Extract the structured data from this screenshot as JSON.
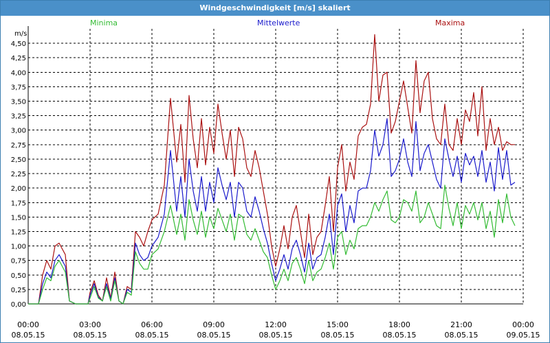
{
  "window": {
    "title": "Windgeschwindigkeit [m/s] skaliert"
  },
  "chart_data": {
    "type": "line",
    "title": "Windgeschwindigkeit [m/s] skaliert",
    "ylabel": "m/s",
    "xlabel": "",
    "ylim": [
      0,
      4.75
    ],
    "xlim": [
      0,
      24
    ],
    "grid": true,
    "legend": "top",
    "yticks": [
      "0,00",
      "0,25",
      "0,50",
      "0,75",
      "1,00",
      "1,25",
      "1,50",
      "1,75",
      "2,00",
      "2,25",
      "2,50",
      "2,75",
      "3,00",
      "3,25",
      "3,50",
      "3,75",
      "4,00",
      "4,25",
      "4,50"
    ],
    "xticks": [
      {
        "time": "00:00",
        "date": "08.05.15"
      },
      {
        "time": "03:00",
        "date": "08.05.15"
      },
      {
        "time": "06:00",
        "date": "08.05.15"
      },
      {
        "time": "09:00",
        "date": "08.05.15"
      },
      {
        "time": "12:00",
        "date": "08.05.15"
      },
      {
        "time": "15:00",
        "date": "08.05.15"
      },
      {
        "time": "18:00",
        "date": "08.05.15"
      },
      {
        "time": "21:00",
        "date": "08.05.15"
      },
      {
        "time": "00:00",
        "date": "09.05.15"
      }
    ],
    "x_hours": [
      0,
      0.5,
      0.7,
      0.9,
      1.1,
      1.3,
      1.5,
      1.8,
      2.0,
      2.3,
      2.6,
      2.9,
      3.0,
      3.2,
      3.4,
      3.6,
      3.8,
      4.0,
      4.2,
      4.4,
      4.6,
      4.8,
      5.0,
      5.2,
      5.4,
      5.6,
      5.8,
      6.0,
      6.3,
      6.6,
      6.9,
      7.2,
      7.4,
      7.6,
      7.8,
      8.0,
      8.2,
      8.4,
      8.6,
      8.8,
      9.0,
      9.2,
      9.4,
      9.6,
      9.8,
      10.0,
      10.2,
      10.4,
      10.6,
      10.8,
      11.0,
      11.2,
      11.4,
      11.6,
      11.8,
      12.0,
      12.2,
      12.4,
      12.6,
      12.8,
      13.0,
      13.2,
      13.4,
      13.6,
      13.8,
      14.0,
      14.2,
      14.4,
      14.6,
      14.8,
      15.0,
      15.2,
      15.4,
      15.6,
      15.8,
      16.0,
      16.2,
      16.4,
      16.6,
      16.8,
      17.0,
      17.2,
      17.4,
      17.6,
      17.8,
      18.0,
      18.2,
      18.4,
      18.6,
      18.8,
      19.0,
      19.2,
      19.4,
      19.6,
      19.8,
      20.0,
      20.2,
      20.4,
      20.6,
      20.8,
      21.0,
      21.2,
      21.4,
      21.6,
      21.8,
      22.0,
      22.2,
      22.4,
      22.6,
      22.8,
      23.0,
      23.2,
      23.4,
      23.6,
      23.8
    ],
    "series": [
      {
        "name": "Minima",
        "color": "#33bb33",
        "values": [
          0,
          0,
          0.25,
          0.45,
          0.4,
          0.65,
          0.75,
          0.55,
          0.05,
          0,
          0,
          0,
          0.1,
          0.3,
          0.1,
          0.05,
          0.3,
          0.05,
          0.4,
          0.05,
          0,
          0.2,
          0.15,
          0.9,
          0.7,
          0.6,
          0.6,
          0.85,
          0.95,
          1.25,
          1.7,
          1.2,
          1.55,
          1.1,
          1.8,
          1.45,
          1.2,
          1.6,
          1.15,
          1.5,
          1.3,
          1.65,
          1.45,
          1.25,
          1.55,
          1.1,
          1.55,
          1.5,
          1.2,
          1.1,
          1.3,
          1.1,
          0.9,
          0.8,
          0.5,
          0.25,
          0.4,
          0.6,
          0.4,
          0.7,
          0.8,
          0.6,
          0.35,
          0.75,
          0.4,
          0.55,
          0.6,
          0.8,
          1.05,
          0.6,
          1.15,
          1.25,
          0.85,
          1.1,
          0.95,
          1.3,
          1.35,
          1.35,
          1.5,
          1.75,
          1.6,
          1.8,
          1.95,
          1.45,
          1.4,
          1.5,
          1.8,
          1.75,
          1.6,
          1.95,
          1.4,
          1.5,
          1.75,
          1.55,
          1.35,
          1.3,
          2.05,
          1.65,
          1.35,
          1.75,
          1.3,
          1.7,
          1.55,
          1.75,
          1.45,
          1.75,
          1.3,
          1.6,
          1.15,
          1.8,
          1.4,
          1.9,
          1.5,
          1.35
        ]
      },
      {
        "name": "Mittelwerte",
        "color": "#1a1acc",
        "values": [
          0,
          0,
          0.35,
          0.55,
          0.45,
          0.75,
          0.85,
          0.65,
          0.05,
          0,
          0,
          0,
          0.15,
          0.35,
          0.12,
          0.05,
          0.35,
          0.08,
          0.45,
          0.05,
          0,
          0.25,
          0.2,
          1.05,
          0.85,
          0.75,
          0.8,
          1.0,
          1.15,
          1.55,
          2.65,
          1.6,
          2.2,
          1.5,
          2.5,
          1.95,
          1.6,
          2.2,
          1.6,
          2.1,
          1.75,
          2.35,
          2.05,
          1.8,
          2.1,
          1.5,
          2.1,
          2.0,
          1.6,
          1.5,
          1.85,
          1.6,
          1.3,
          1.05,
          0.7,
          0.4,
          0.6,
          0.85,
          0.6,
          0.95,
          1.1,
          0.85,
          0.55,
          1.05,
          0.6,
          0.8,
          0.85,
          1.15,
          1.55,
          0.85,
          1.7,
          1.9,
          1.25,
          1.7,
          1.4,
          1.95,
          2.0,
          2.0,
          2.3,
          3.0,
          2.55,
          2.75,
          3.2,
          2.2,
          2.3,
          2.5,
          2.85,
          2.45,
          2.2,
          3.15,
          2.3,
          2.6,
          2.75,
          2.45,
          2.15,
          2.0,
          2.85,
          2.5,
          2.2,
          2.55,
          2.1,
          2.6,
          2.4,
          2.55,
          2.2,
          2.65,
          2.1,
          2.45,
          1.95,
          2.7,
          2.15,
          2.65,
          2.05,
          2.1
        ]
      },
      {
        "name": "Maxima",
        "color": "#aa1111",
        "values": [
          0,
          0,
          0.5,
          0.75,
          0.6,
          1.0,
          1.05,
          0.85,
          0.05,
          0,
          0,
          0,
          0.2,
          0.4,
          0.15,
          0.05,
          0.45,
          0.1,
          0.55,
          0.05,
          0,
          0.3,
          0.25,
          1.25,
          1.15,
          1.0,
          1.25,
          1.45,
          1.55,
          2.05,
          3.55,
          2.45,
          3.1,
          2.1,
          3.6,
          2.85,
          2.35,
          3.2,
          2.4,
          3.05,
          2.6,
          3.45,
          2.95,
          2.5,
          3.0,
          2.2,
          3.05,
          2.85,
          2.35,
          2.2,
          2.65,
          2.35,
          1.95,
          1.55,
          1.0,
          0.65,
          0.95,
          1.35,
          0.95,
          1.5,
          1.7,
          1.25,
          0.8,
          1.55,
          0.85,
          1.15,
          1.25,
          1.7,
          2.2,
          1.25,
          2.35,
          2.75,
          1.95,
          2.45,
          2.15,
          2.9,
          3.05,
          3.1,
          3.45,
          4.65,
          3.5,
          3.95,
          4.0,
          2.95,
          3.15,
          3.5,
          3.85,
          3.4,
          2.95,
          4.2,
          3.3,
          3.85,
          4.0,
          3.2,
          2.85,
          2.75,
          3.45,
          2.75,
          2.65,
          3.2,
          2.75,
          3.35,
          3.15,
          3.65,
          2.9,
          3.75,
          2.65,
          3.2,
          2.75,
          3.05,
          2.65,
          2.8,
          2.75,
          2.75
        ]
      }
    ]
  }
}
